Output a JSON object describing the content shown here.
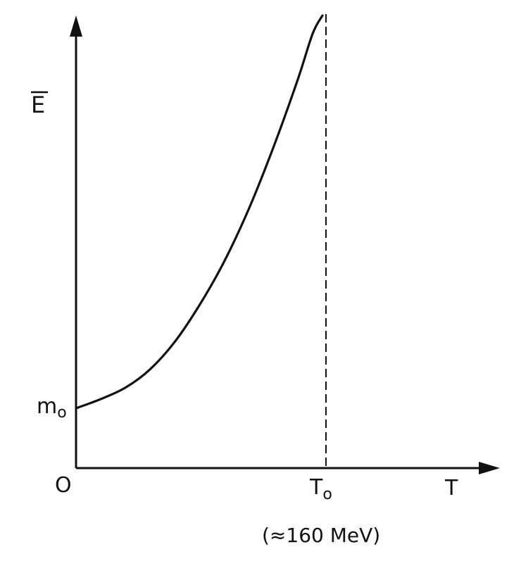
{
  "chart_data": {
    "type": "line",
    "xlabel": "T",
    "ylabel": "E̅",
    "origin_label": "O",
    "x_marker": {
      "value_label": "T",
      "value_subscript": "o",
      "note": "(≈160 MeV)"
    },
    "y_marker": {
      "value_label": "m",
      "value_subscript": "o"
    },
    "axes": {
      "grid": false,
      "ticks": false,
      "numeric_scale": false
    },
    "asymptote": {
      "orientation": "vertical",
      "at": "T_o",
      "style": "dashed"
    },
    "series": [
      {
        "description_points_normalized": [
          [
            0.0,
            0.14
          ],
          [
            0.1,
            0.16
          ],
          [
            0.2,
            0.185
          ],
          [
            0.3,
            0.225
          ],
          [
            0.4,
            0.285
          ],
          [
            0.5,
            0.365
          ],
          [
            0.6,
            0.46
          ],
          [
            0.7,
            0.575
          ],
          [
            0.8,
            0.71
          ],
          [
            0.9,
            0.86
          ],
          [
            0.96,
            0.96
          ],
          [
            1.0,
            1.0
          ]
        ]
      }
    ]
  }
}
